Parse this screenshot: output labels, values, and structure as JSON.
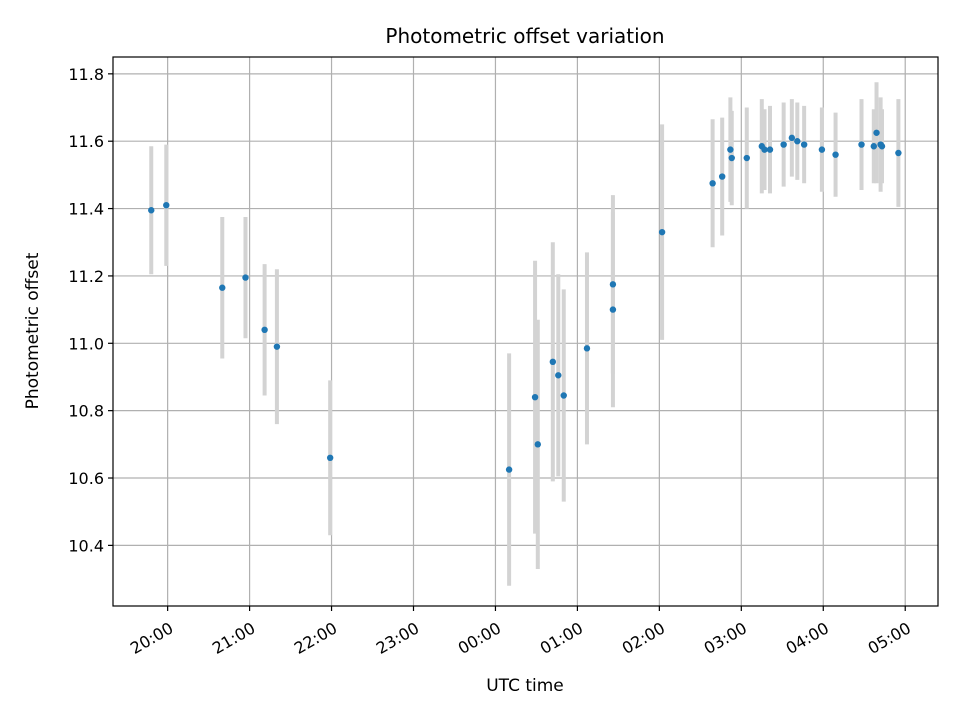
{
  "chart_data": {
    "type": "scatter",
    "title": "Photometric offset variation",
    "xlabel": "UTC time",
    "ylabel": "Photometric offset",
    "xlim": [
      "2000-01-01T19:20",
      "2000-01-02T05:24"
    ],
    "ylim": [
      10.22,
      11.85
    ],
    "x_ticks": [
      "20:00",
      "21:00",
      "22:00",
      "23:00",
      "00:00",
      "01:00",
      "02:00",
      "03:00",
      "04:00",
      "05:00"
    ],
    "y_ticks": [
      "10.4",
      "10.6",
      "10.8",
      "11.0",
      "11.2",
      "11.4",
      "11.6",
      "11.8"
    ],
    "grid": true,
    "colors": {
      "point": "#1f77b4",
      "errorbar": "#d3d3d3",
      "grid": "#b0b0b0"
    },
    "points": [
      {
        "x": "2000-01-01T19:48",
        "y": 11.395,
        "err": 0.19
      },
      {
        "x": "2000-01-01T19:59",
        "y": 11.41,
        "err": 0.18
      },
      {
        "x": "2000-01-01T20:40",
        "y": 11.165,
        "err": 0.21
      },
      {
        "x": "2000-01-01T20:57",
        "y": 11.195,
        "err": 0.18
      },
      {
        "x": "2000-01-01T21:11",
        "y": 11.04,
        "err": 0.195
      },
      {
        "x": "2000-01-01T21:20",
        "y": 10.99,
        "err": 0.23
      },
      {
        "x": "2000-01-01T21:59",
        "y": 10.66,
        "err": 0.23
      },
      {
        "x": "2000-01-02T00:10",
        "y": 10.625,
        "err": 0.345
      },
      {
        "x": "2000-01-02T00:29",
        "y": 10.84,
        "err": 0.405
      },
      {
        "x": "2000-01-02T00:31",
        "y": 10.7,
        "err": 0.37
      },
      {
        "x": "2000-01-02T00:42",
        "y": 10.945,
        "err": 0.355
      },
      {
        "x": "2000-01-02T00:46",
        "y": 10.905,
        "err": 0.3
      },
      {
        "x": "2000-01-02T00:50",
        "y": 10.845,
        "err": 0.315
      },
      {
        "x": "2000-01-02T01:07",
        "y": 10.985,
        "err": 0.285
      },
      {
        "x": "2000-01-02T01:26",
        "y": 11.1,
        "err": 0.29
      },
      {
        "x": "2000-01-02T01:26",
        "y": 11.175,
        "err": 0.265
      },
      {
        "x": "2000-01-02T02:02",
        "y": 11.33,
        "err": 0.32
      },
      {
        "x": "2000-01-02T02:39",
        "y": 11.475,
        "err": 0.19
      },
      {
        "x": "2000-01-02T02:46",
        "y": 11.495,
        "err": 0.175
      },
      {
        "x": "2000-01-02T02:52",
        "y": 11.575,
        "err": 0.155
      },
      {
        "x": "2000-01-02T02:53",
        "y": 11.55,
        "err": 0.14
      },
      {
        "x": "2000-01-02T03:04",
        "y": 11.55,
        "err": 0.15
      },
      {
        "x": "2000-01-02T03:15",
        "y": 11.585,
        "err": 0.14
      },
      {
        "x": "2000-01-02T03:17",
        "y": 11.575,
        "err": 0.12
      },
      {
        "x": "2000-01-02T03:21",
        "y": 11.575,
        "err": 0.13
      },
      {
        "x": "2000-01-02T03:31",
        "y": 11.59,
        "err": 0.125
      },
      {
        "x": "2000-01-02T03:37",
        "y": 11.61,
        "err": 0.115
      },
      {
        "x": "2000-01-02T03:41",
        "y": 11.6,
        "err": 0.115
      },
      {
        "x": "2000-01-02T03:46",
        "y": 11.59,
        "err": 0.115
      },
      {
        "x": "2000-01-02T03:59",
        "y": 11.575,
        "err": 0.125
      },
      {
        "x": "2000-01-02T04:09",
        "y": 11.56,
        "err": 0.125
      },
      {
        "x": "2000-01-02T04:28",
        "y": 11.59,
        "err": 0.135
      },
      {
        "x": "2000-01-02T04:37",
        "y": 11.585,
        "err": 0.11
      },
      {
        "x": "2000-01-02T04:39",
        "y": 11.625,
        "err": 0.15
      },
      {
        "x": "2000-01-02T04:42",
        "y": 11.59,
        "err": 0.14
      },
      {
        "x": "2000-01-02T04:43",
        "y": 11.585,
        "err": 0.11
      },
      {
        "x": "2000-01-02T04:55",
        "y": 11.565,
        "err": 0.16
      }
    ]
  }
}
